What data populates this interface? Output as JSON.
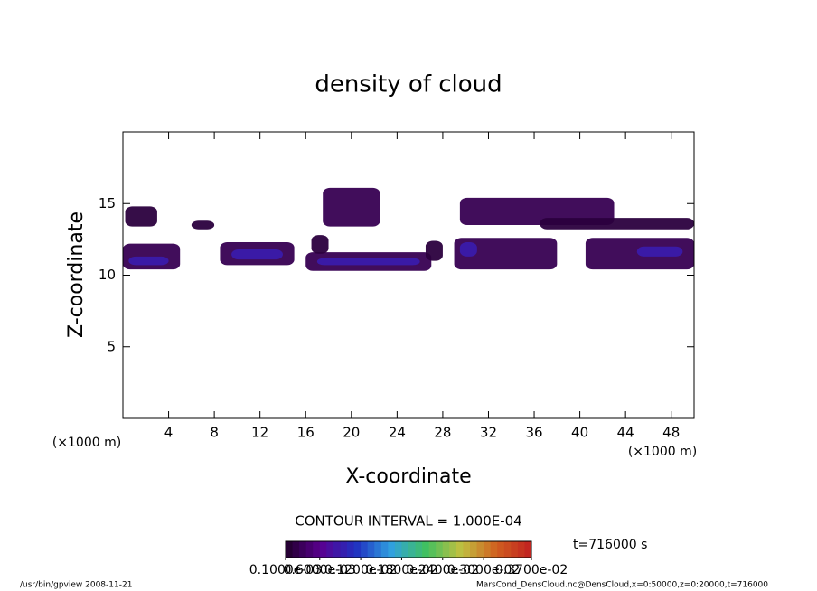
{
  "chart_data": {
    "type": "contour",
    "title": "density of cloud",
    "x_label": "X-coordinate",
    "y_label": "Z-coordinate",
    "x_unit": "(×1000 m)",
    "y_unit": "(×1000 m)",
    "xlim": [
      0,
      50
    ],
    "ylim": [
      0,
      20
    ],
    "xticks": [
      4,
      8,
      12,
      16,
      20,
      24,
      28,
      32,
      36,
      40,
      44,
      48
    ],
    "yticks": [
      5,
      10,
      15
    ],
    "regions": [
      {
        "x": [
          0.2,
          3
        ],
        "z": [
          13.4,
          14.8
        ],
        "value": 0.0002
      },
      {
        "x": [
          0,
          5
        ],
        "z": [
          10.4,
          12.2
        ],
        "value": 0.0003
      },
      {
        "x": [
          0.5,
          4
        ],
        "z": [
          10.7,
          11.3
        ],
        "value": 0.0009
      },
      {
        "x": [
          6,
          8
        ],
        "z": [
          13.2,
          13.8
        ],
        "value": 0.0002
      },
      {
        "x": [
          8.5,
          15
        ],
        "z": [
          10.7,
          12.3
        ],
        "value": 0.0003
      },
      {
        "x": [
          9.5,
          14
        ],
        "z": [
          11.1,
          11.8
        ],
        "value": 0.0009
      },
      {
        "x": [
          17.5,
          22.5
        ],
        "z": [
          13.4,
          16.1
        ],
        "value": 0.0003
      },
      {
        "x": [
          16,
          27
        ],
        "z": [
          10.3,
          11.6
        ],
        "value": 0.0003
      },
      {
        "x": [
          17,
          26
        ],
        "z": [
          10.7,
          11.2
        ],
        "value": 0.0009
      },
      {
        "x": [
          16.5,
          18
        ],
        "z": [
          11.5,
          12.8
        ],
        "value": 0.0002
      },
      {
        "x": [
          26.5,
          28
        ],
        "z": [
          11,
          12.4
        ],
        "value": 0.0002
      },
      {
        "x": [
          29,
          38
        ],
        "z": [
          10.4,
          12.6
        ],
        "value": 0.0003
      },
      {
        "x": [
          29.5,
          31
        ],
        "z": [
          11.3,
          12.3
        ],
        "value": 0.0009
      },
      {
        "x": [
          29.5,
          43
        ],
        "z": [
          13.5,
          15.4
        ],
        "value": 0.0003
      },
      {
        "x": [
          36.5,
          50
        ],
        "z": [
          13.2,
          14
        ],
        "value": 0.0002
      },
      {
        "x": [
          40.5,
          50
        ],
        "z": [
          10.4,
          12.6
        ],
        "value": 0.0003
      },
      {
        "x": [
          45,
          49
        ],
        "z": [
          11.3,
          12
        ],
        "value": 0.0009
      }
    ],
    "contour_interval": "CONTOUR INTERVAL = 1.000E-04",
    "time_label": "t=716000 s",
    "clim": [
      0.0001,
      0.0037
    ],
    "colormap": [
      "#20002a",
      "#5a0090",
      "#2030c0",
      "#30a0e0",
      "#40c060",
      "#c0c040",
      "#d06020",
      "#c02020"
    ],
    "colorbar_ticks": [
      {
        "value": 0.0001,
        "label": "0.1000e-03"
      },
      {
        "value": 0.0006,
        "label": "0.6000e-03"
      },
      {
        "value": 0.0012,
        "label": "0.1200e-02"
      },
      {
        "value": 0.0018,
        "label": "0.1800e-02"
      },
      {
        "value": 0.0024,
        "label": "0.2400e-02"
      },
      {
        "value": 0.003,
        "label": "0.3000e-02"
      },
      {
        "value": 0.0037,
        "label": "0.3700e-02"
      }
    ],
    "footer_left": "/usr/bin/gpview  2008-11-21",
    "footer_right": "MarsCond_DensCloud.nc@DensCloud,x=0:50000,z=0:20000,t=716000"
  }
}
